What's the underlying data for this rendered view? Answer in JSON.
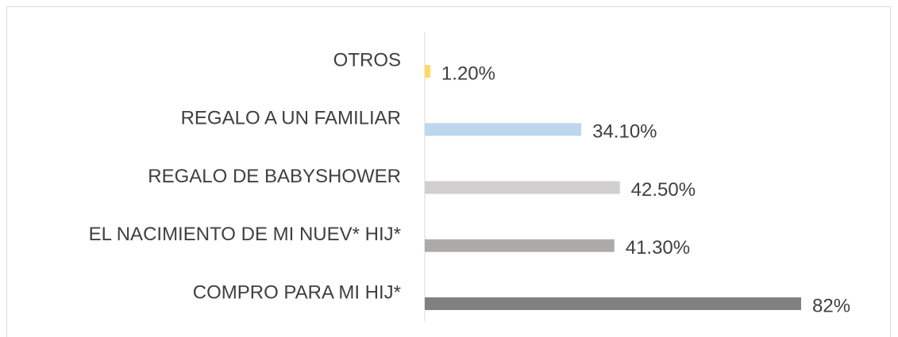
{
  "chart_data": {
    "type": "barh",
    "categories": [
      "OTROS",
      "REGALO A UN FAMILIAR",
      "REGALO DE BABYSHOWER",
      "EL NACIMIENTO DE MI NUEV* HIJ*",
      "COMPRO PARA MI HIJ*"
    ],
    "values": [
      1.2,
      34.1,
      42.5,
      41.3,
      82
    ],
    "value_labels": [
      "1.20%",
      "34.10%",
      "42.50%",
      "41.30%",
      "82%"
    ],
    "colors": [
      "#ffd966",
      "#bdd7ee",
      "#d0cece",
      "#aeaaaa",
      "#808080"
    ]
  }
}
